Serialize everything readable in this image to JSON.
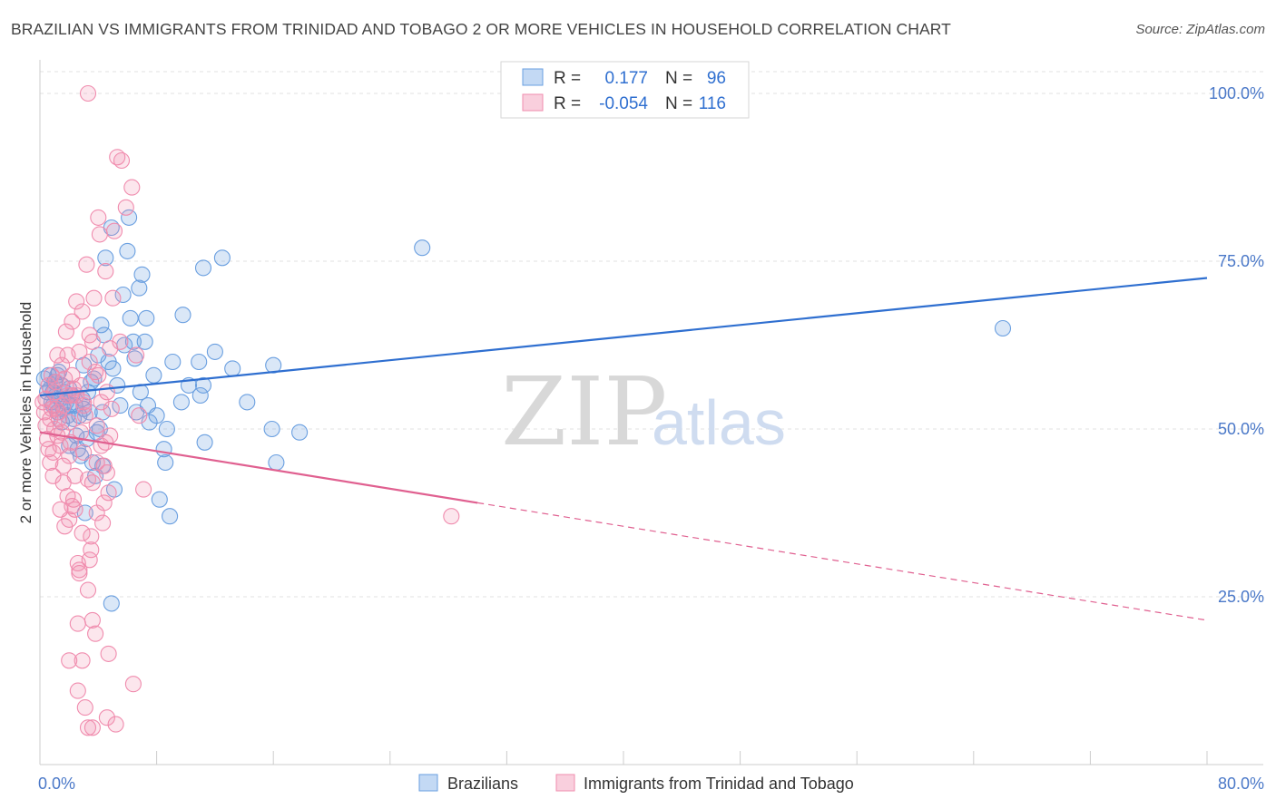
{
  "title": "BRAZILIAN VS IMMIGRANTS FROM TRINIDAD AND TOBAGO 2 OR MORE VEHICLES IN HOUSEHOLD CORRELATION CHART",
  "source": "Source: ZipAtlas.com",
  "watermark": {
    "zip": "ZIP",
    "atlas": "atlas"
  },
  "legend": {
    "rows": [
      {
        "r_label": "R =",
        "r_value": "0.177",
        "n_label": "N =",
        "n_value": "96"
      },
      {
        "r_label": "R =",
        "r_value": "-0.054",
        "n_label": "N =",
        "n_value": "116"
      }
    ]
  },
  "bottom_legend": [
    "Brazilians",
    "Immigrants from Trinidad and Tobago"
  ],
  "colors": {
    "blue": "#6a9fe0",
    "blue_line": "#2f6fd0",
    "pink": "#f08cae",
    "pink_line": "#e06090",
    "axis_text": "#4a78c8"
  },
  "chart_data": {
    "type": "scatter",
    "ylabel": "2 or more Vehicles in Household",
    "xlim": [
      0,
      80
    ],
    "ylim": [
      0,
      105
    ],
    "x_tick_labels": [
      {
        "value": 0,
        "label": "0.0%"
      },
      {
        "value": 80,
        "label": "80.0%"
      }
    ],
    "y_tick_labels": [
      {
        "value": 25,
        "label": "25.0%"
      },
      {
        "value": 50,
        "label": "50.0%"
      },
      {
        "value": 75,
        "label": "75.0%"
      },
      {
        "value": 100,
        "label": "100.0%"
      }
    ],
    "grid": true,
    "series": [
      {
        "name": "Brazilians",
        "color": "#6a9fe0",
        "trend": {
          "x0": 0,
          "y0": 55.0,
          "x1": 80,
          "y1": 72.5,
          "dashed_from": null
        },
        "points": [
          [
            0.3,
            57.5
          ],
          [
            0.5,
            55.5
          ],
          [
            0.6,
            58.0
          ],
          [
            0.7,
            56.0
          ],
          [
            0.8,
            54.0
          ],
          [
            0.9,
            53.5
          ],
          [
            1.0,
            57.0
          ],
          [
            1.1,
            55.0
          ],
          [
            1.2,
            52.5
          ],
          [
            1.3,
            58.5
          ],
          [
            1.4,
            54.5
          ],
          [
            1.5,
            56.5
          ],
          [
            1.6,
            53.0
          ],
          [
            1.7,
            55.5
          ],
          [
            1.8,
            54.0
          ],
          [
            1.9,
            52.0
          ],
          [
            2.0,
            56.0
          ],
          [
            2.1,
            53.5
          ],
          [
            2.2,
            55.0
          ],
          [
            2.3,
            51.5
          ],
          [
            2.5,
            49.0
          ],
          [
            2.6,
            47.0
          ],
          [
            2.7,
            52.0
          ],
          [
            2.8,
            46.0
          ],
          [
            2.9,
            54.5
          ],
          [
            3.0,
            53.0
          ],
          [
            3.1,
            37.5
          ],
          [
            3.2,
            48.5
          ],
          [
            3.3,
            55.5
          ],
          [
            3.4,
            52.5
          ],
          [
            3.6,
            45.0
          ],
          [
            3.7,
            57.5
          ],
          [
            3.8,
            43.0
          ],
          [
            4.0,
            61.0
          ],
          [
            4.1,
            50.0
          ],
          [
            4.2,
            65.5
          ],
          [
            4.3,
            44.5
          ],
          [
            4.4,
            64.0
          ],
          [
            4.5,
            75.5
          ],
          [
            4.7,
            60.0
          ],
          [
            4.9,
            80.0
          ],
          [
            5.1,
            41.0
          ],
          [
            5.3,
            56.5
          ],
          [
            5.5,
            53.5
          ],
          [
            5.7,
            70.0
          ],
          [
            5.8,
            62.5
          ],
          [
            6.0,
            76.5
          ],
          [
            6.1,
            81.5
          ],
          [
            6.2,
            66.5
          ],
          [
            6.4,
            63.0
          ],
          [
            6.6,
            52.5
          ],
          [
            6.8,
            71.0
          ],
          [
            7.0,
            73.0
          ],
          [
            7.2,
            63.0
          ],
          [
            7.3,
            66.5
          ],
          [
            7.4,
            53.5
          ],
          [
            7.8,
            58.0
          ],
          [
            8.2,
            39.5
          ],
          [
            8.5,
            47.0
          ],
          [
            8.6,
            45.0
          ],
          [
            8.7,
            50.0
          ],
          [
            8.9,
            37.0
          ],
          [
            9.1,
            60.0
          ],
          [
            9.7,
            54.0
          ],
          [
            9.8,
            67.0
          ],
          [
            10.2,
            56.5
          ],
          [
            10.9,
            60.0
          ],
          [
            11.0,
            55.0
          ],
          [
            11.2,
            74.0
          ],
          [
            11.3,
            48.0
          ],
          [
            12.0,
            61.5
          ],
          [
            12.5,
            75.5
          ],
          [
            13.2,
            59.0
          ],
          [
            14.2,
            54.0
          ],
          [
            15.9,
            50.0
          ],
          [
            16.2,
            45.0
          ],
          [
            17.8,
            49.5
          ],
          [
            26.2,
            77.0
          ],
          [
            66.0,
            65.0
          ],
          [
            4.9,
            24.0
          ],
          [
            3.5,
            57.0
          ],
          [
            2.4,
            53.5
          ],
          [
            1.5,
            51.0
          ],
          [
            6.9,
            55.5
          ],
          [
            8.0,
            52.0
          ],
          [
            5.0,
            59.0
          ],
          [
            3.9,
            49.5
          ],
          [
            2.0,
            47.5
          ],
          [
            16.0,
            59.5
          ],
          [
            11.2,
            56.5
          ],
          [
            6.5,
            60.5
          ],
          [
            1.2,
            58.0
          ],
          [
            4.3,
            52.5
          ],
          [
            7.5,
            51.0
          ],
          [
            3.0,
            59.5
          ],
          [
            0.9,
            55.5
          ]
        ]
      },
      {
        "name": "Immigrants from Trinidad and Tobago",
        "color": "#f08cae",
        "trend": {
          "x0": 0,
          "y0": 49.5,
          "x1": 80,
          "y1": 21.5,
          "dashed_from": 30
        },
        "points": [
          [
            0.2,
            54.0
          ],
          [
            0.3,
            52.5
          ],
          [
            0.4,
            50.5
          ],
          [
            0.5,
            48.5
          ],
          [
            0.6,
            56.5
          ],
          [
            0.7,
            45.0
          ],
          [
            0.8,
            53.0
          ],
          [
            0.9,
            43.0
          ],
          [
            1.0,
            55.5
          ],
          [
            1.1,
            57.0
          ],
          [
            1.2,
            49.0
          ],
          [
            1.3,
            51.5
          ],
          [
            1.4,
            47.5
          ],
          [
            1.5,
            59.5
          ],
          [
            1.6,
            53.5
          ],
          [
            1.7,
            35.5
          ],
          [
            1.8,
            64.5
          ],
          [
            1.9,
            61.0
          ],
          [
            2.0,
            46.0
          ],
          [
            2.1,
            55.0
          ],
          [
            2.2,
            58.0
          ],
          [
            2.3,
            39.5
          ],
          [
            2.4,
            38.0
          ],
          [
            2.5,
            69.0
          ],
          [
            2.6,
            30.0
          ],
          [
            2.7,
            28.5
          ],
          [
            2.8,
            49.5
          ],
          [
            2.9,
            67.5
          ],
          [
            3.0,
            54.0
          ],
          [
            3.1,
            52.0
          ],
          [
            3.2,
            74.5
          ],
          [
            3.3,
            42.5
          ],
          [
            3.4,
            60.0
          ],
          [
            3.5,
            34.0
          ],
          [
            3.6,
            63.0
          ],
          [
            3.7,
            69.5
          ],
          [
            3.8,
            58.5
          ],
          [
            3.9,
            50.5
          ],
          [
            4.0,
            81.5
          ],
          [
            4.1,
            79.0
          ],
          [
            4.2,
            47.5
          ],
          [
            4.3,
            36.0
          ],
          [
            4.4,
            44.5
          ],
          [
            4.5,
            73.5
          ],
          [
            4.6,
            55.5
          ],
          [
            4.7,
            40.5
          ],
          [
            4.8,
            62.0
          ],
          [
            4.9,
            53.0
          ],
          [
            5.0,
            69.5
          ],
          [
            5.1,
            79.5
          ],
          [
            5.3,
            90.5
          ],
          [
            5.6,
            90.0
          ],
          [
            5.9,
            83.0
          ],
          [
            6.3,
            86.0
          ],
          [
            6.6,
            61.0
          ],
          [
            6.8,
            52.0
          ],
          [
            7.1,
            41.0
          ],
          [
            3.3,
            100.0
          ],
          [
            2.0,
            15.5
          ],
          [
            2.6,
            11.0
          ],
          [
            3.1,
            8.5
          ],
          [
            3.3,
            5.5
          ],
          [
            3.6,
            5.5
          ],
          [
            4.6,
            7.0
          ],
          [
            5.2,
            6.0
          ],
          [
            6.4,
            12.0
          ],
          [
            4.7,
            16.5
          ],
          [
            2.9,
            15.5
          ],
          [
            3.8,
            19.5
          ],
          [
            3.6,
            21.5
          ],
          [
            2.6,
            21.0
          ],
          [
            2.9,
            34.5
          ],
          [
            3.5,
            32.0
          ],
          [
            2.7,
            29.0
          ],
          [
            3.4,
            30.5
          ],
          [
            2.2,
            38.5
          ],
          [
            1.9,
            40.0
          ],
          [
            4.4,
            39.0
          ],
          [
            3.9,
            37.5
          ],
          [
            2.4,
            43.0
          ],
          [
            1.6,
            44.5
          ],
          [
            2.1,
            48.0
          ],
          [
            0.6,
            47.0
          ],
          [
            1.0,
            50.0
          ],
          [
            1.3,
            52.5
          ],
          [
            0.8,
            58.0
          ],
          [
            1.7,
            57.5
          ],
          [
            2.3,
            56.0
          ],
          [
            0.4,
            54.5
          ],
          [
            1.1,
            53.0
          ],
          [
            2.0,
            51.0
          ],
          [
            1.5,
            49.5
          ],
          [
            3.0,
            53.5
          ],
          [
            2.5,
            55.0
          ],
          [
            0.9,
            46.5
          ],
          [
            1.2,
            61.0
          ],
          [
            2.8,
            56.5
          ],
          [
            3.4,
            64.0
          ],
          [
            2.2,
            66.0
          ],
          [
            4.0,
            58.0
          ],
          [
            4.8,
            49.0
          ],
          [
            5.5,
            63.0
          ],
          [
            1.6,
            42.0
          ],
          [
            3.0,
            46.5
          ],
          [
            2.0,
            36.5
          ],
          [
            1.4,
            38.0
          ],
          [
            3.9,
            45.0
          ],
          [
            4.5,
            48.0
          ],
          [
            2.7,
            61.5
          ],
          [
            3.3,
            26.0
          ],
          [
            28.2,
            37.0
          ],
          [
            4.2,
            54.0
          ],
          [
            3.6,
            42.0
          ],
          [
            1.9,
            55.0
          ],
          [
            0.7,
            51.5
          ],
          [
            4.6,
            43.5
          ]
        ]
      }
    ]
  }
}
